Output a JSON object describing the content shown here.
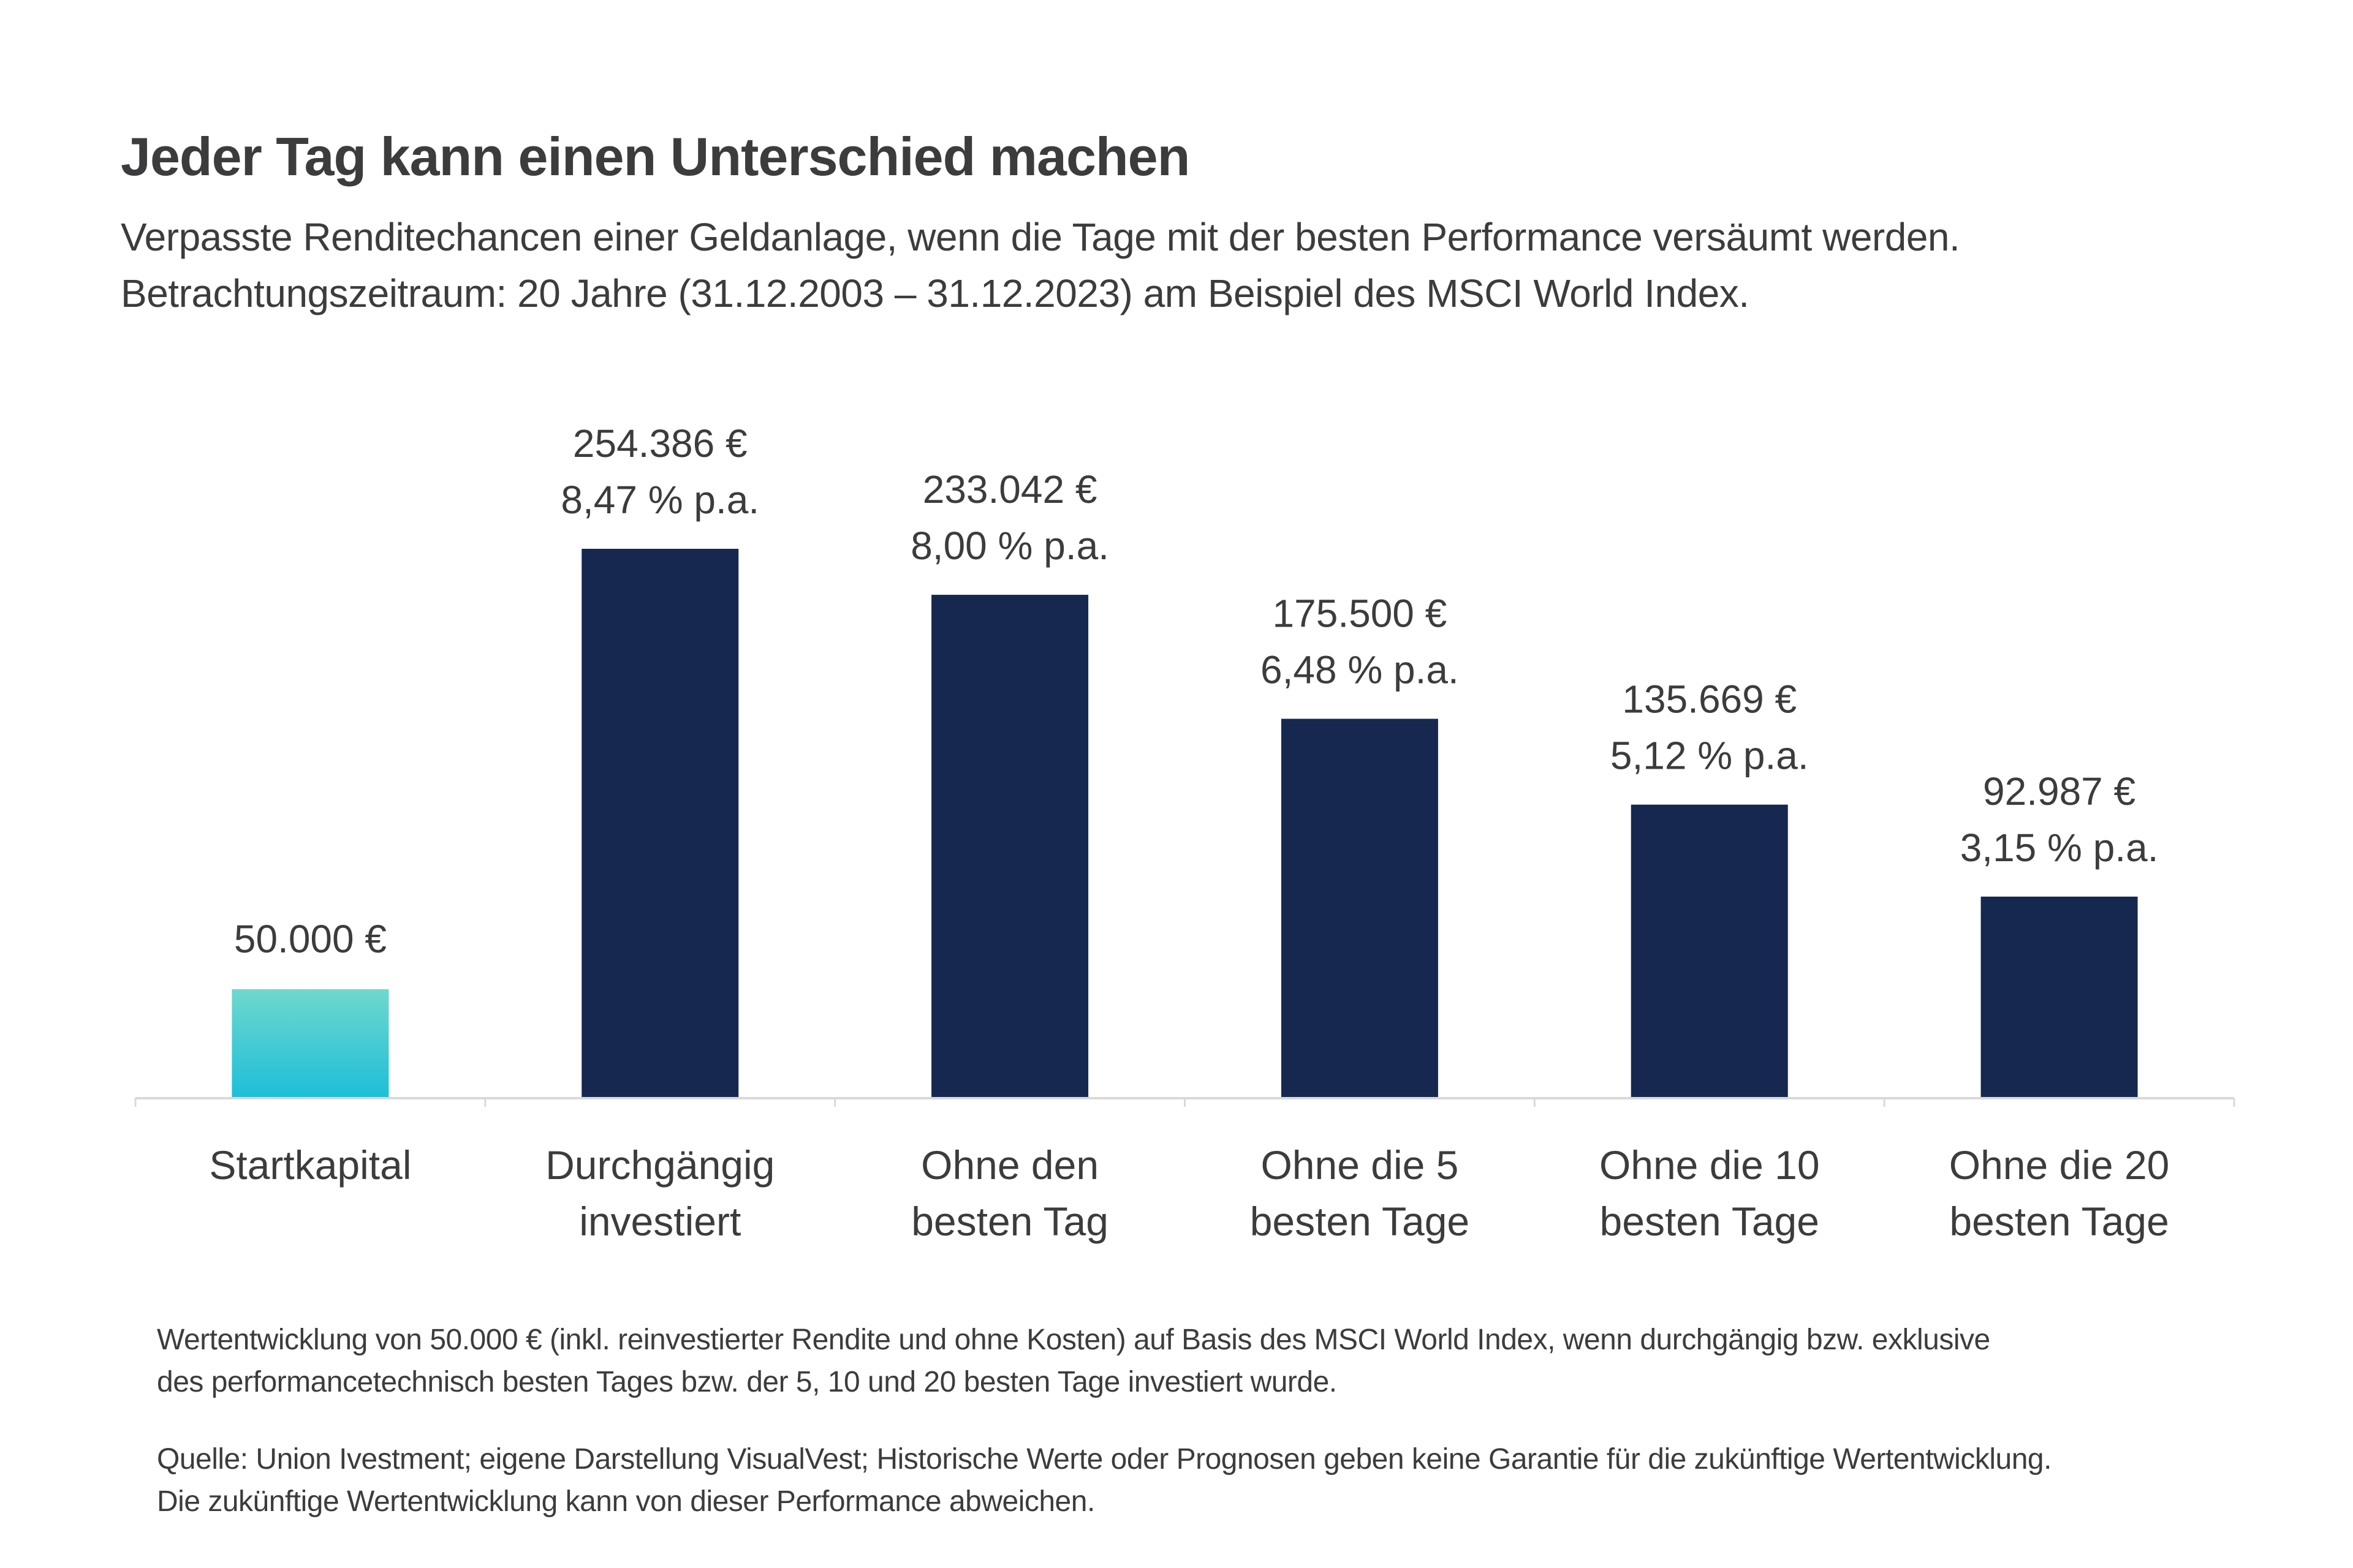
{
  "title": "Jeder Tag kann einen Unterschied machen",
  "subtitle": [
    "Verpasste Renditechancen einer Geldanlage, wenn die Tage mit der besten Performance versäumt werden.",
    "Betrachtungszeitraum: 20 Jahre  (31.12.2003 – 31.12.2023) am Beispiel des MSCI World Index."
  ],
  "chart_data": {
    "type": "bar",
    "title": "Jeder Tag kann einen Unterschied machen",
    "xlabel": "",
    "ylabel": "",
    "ylim": [
      0,
      254386
    ],
    "grid": false,
    "categories": [
      [
        "Startkapital"
      ],
      [
        "Durchgängig",
        "investiert"
      ],
      [
        "Ohne den",
        "besten Tag"
      ],
      [
        "Ohne die 5",
        "besten Tage"
      ],
      [
        "Ohne die 10",
        "besten Tage"
      ],
      [
        "Ohne die 20",
        "besten Tage"
      ]
    ],
    "values": [
      50000,
      254386,
      233042,
      175500,
      135669,
      92987
    ],
    "value_labels": [
      "50.000 €",
      "254.386 €",
      "233.042 €",
      "175.500 €",
      "135.669 €",
      "92.987 €"
    ],
    "rate_labels": [
      "",
      "8,47 % p.a.",
      "8,00 % p.a.",
      "6,48 % p.a.",
      "5,12 % p.a.",
      "3,15 % p.a."
    ],
    "colors": {
      "start_top": "#6fd8cd",
      "start_bottom": "#1ebed9",
      "bars": "#16284f",
      "axis": "#d9d9d9"
    }
  },
  "footnotes": [
    "Wertentwicklung von 50.000 € (inkl. reinvestierter Rendite und ohne Kosten) auf Basis des MSCI World Index, wenn durchgängig bzw. exklusive",
    "des performancetechnisch besten Tages bzw. der 5, 10 und 20 besten Tage investiert wurde.",
    "Quelle: Union Ivestment; eigene Darstellung VisualVest; Historische Werte oder Prognosen geben keine Garantie für die zukünftige Wertentwicklung.",
    "Die zukünftige Wertentwicklung kann von dieser Performance abweichen."
  ]
}
